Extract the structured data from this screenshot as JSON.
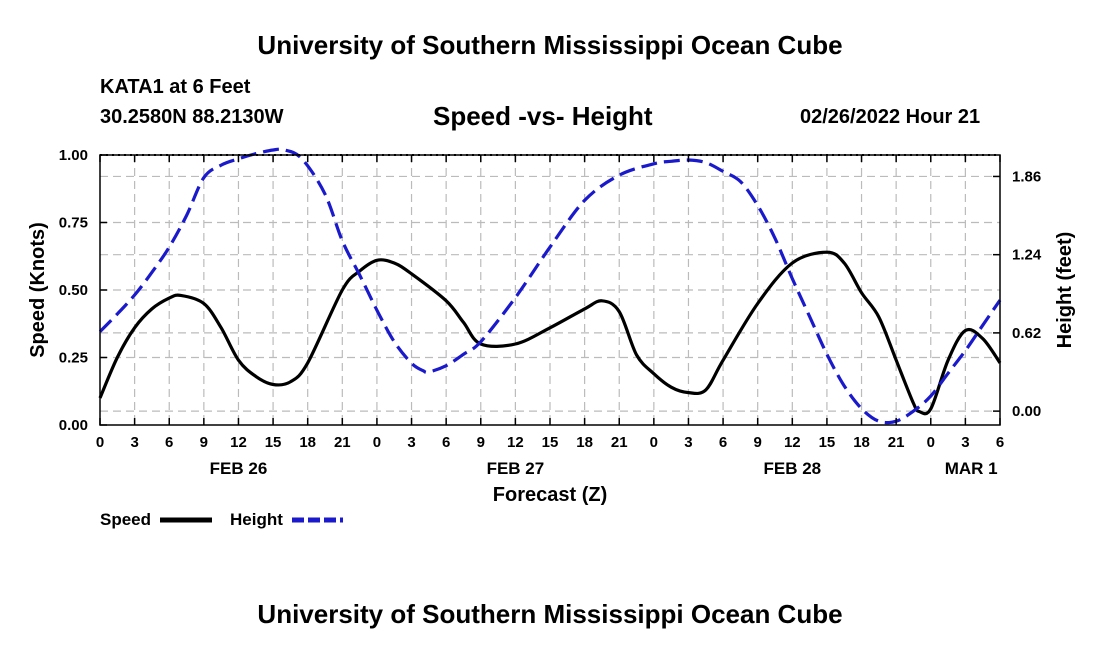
{
  "header": {
    "title": "University of Southern Mississippi Ocean Cube",
    "station": "KATA1 at 6 Feet",
    "coords": "30.2580N  88.2130W",
    "subtitle": "Speed -vs- Height",
    "datetime": "02/26/2022 Hour 21"
  },
  "footer": {
    "title": "University of Southern Mississippi Ocean Cube"
  },
  "colors": {
    "speed": "#000000",
    "height": "#1a1acc",
    "grid": "#bbbbbb"
  },
  "chart_data": {
    "type": "line",
    "title": "Speed -vs- Height",
    "xlabel": "Forecast (Z)",
    "ylabel": "Speed (Knots)",
    "y2label": "Height (feet)",
    "xlim": [
      0,
      78
    ],
    "ylim": [
      0,
      1
    ],
    "y2lim": [
      -0.11,
      2.03
    ],
    "x_ticks": [
      0,
      3,
      6,
      9,
      12,
      15,
      18,
      21,
      24,
      27,
      30,
      33,
      36,
      39,
      42,
      45,
      48,
      51,
      54,
      57,
      60,
      63,
      66,
      69,
      72,
      75,
      78
    ],
    "x_tick_labels": [
      "0",
      "3",
      "6",
      "9",
      "12",
      "15",
      "18",
      "21",
      "0",
      "3",
      "6",
      "9",
      "12",
      "15",
      "18",
      "21",
      "0",
      "3",
      "6",
      "9",
      "12",
      "15",
      "18",
      "21",
      "0",
      "3",
      "6"
    ],
    "y_ticks": [
      0,
      0.25,
      0.5,
      0.75,
      1.0
    ],
    "y_tick_labels": [
      "0.00",
      "0.25",
      "0.50",
      "0.75",
      "1.00"
    ],
    "y2_ticks": [
      0,
      0.62,
      1.24,
      1.86
    ],
    "y2_tick_labels": [
      "0.00",
      "0.62",
      "1.24",
      "1.86"
    ],
    "day_labels": [
      {
        "x": 12,
        "label": "FEB 26"
      },
      {
        "x": 36,
        "label": "FEB 27"
      },
      {
        "x": 60,
        "label": "FEB 28"
      },
      {
        "x": 75.5,
        "label": "MAR 1"
      }
    ],
    "grid": true,
    "legend_position": "bottom-left",
    "series": [
      {
        "name": "Speed",
        "axis": "left",
        "style": "solid",
        "color": "#000000",
        "x": [
          0,
          1.5,
          3,
          4.5,
          6,
          7,
          9,
          10.5,
          12,
          13.5,
          15,
          16.5,
          18,
          21,
          22.5,
          24,
          25.5,
          27,
          30,
          31.5,
          33,
          36,
          39,
          42,
          43.5,
          45,
          46.5,
          48,
          49.5,
          51,
          52.5,
          54,
          57,
          60,
          63,
          64.5,
          66,
          67.5,
          69,
          70.5,
          71,
          72,
          73.5,
          75,
          76.5,
          78
        ],
        "y": [
          0.1,
          0.25,
          0.36,
          0.43,
          0.47,
          0.48,
          0.45,
          0.36,
          0.24,
          0.18,
          0.15,
          0.16,
          0.23,
          0.5,
          0.57,
          0.61,
          0.6,
          0.56,
          0.46,
          0.38,
          0.3,
          0.3,
          0.36,
          0.43,
          0.46,
          0.42,
          0.26,
          0.19,
          0.14,
          0.12,
          0.13,
          0.24,
          0.45,
          0.6,
          0.64,
          0.6,
          0.49,
          0.4,
          0.24,
          0.08,
          0.05,
          0.06,
          0.24,
          0.35,
          0.32,
          0.23
        ]
      },
      {
        "name": "Height",
        "axis": "right",
        "style": "dashed",
        "color": "#1a1acc",
        "x": [
          0,
          1.5,
          3,
          4.5,
          6,
          7.5,
          9,
          10.5,
          12,
          13.5,
          15,
          16,
          17.5,
          19.5,
          21,
          22.5,
          24,
          25.5,
          27,
          28,
          28.5,
          30,
          31.5,
          33,
          36,
          39,
          42,
          45,
          48,
          49.5,
          51,
          52.5,
          54,
          55.5,
          57,
          58.5,
          60,
          61.5,
          63,
          64.5,
          66,
          67.5,
          69,
          70.5,
          72,
          73.5,
          75,
          76.5,
          78
        ],
        "y": [
          0.63,
          0.77,
          0.92,
          1.1,
          1.3,
          1.55,
          1.85,
          1.95,
          2.0,
          2.04,
          2.07,
          2.07,
          2.0,
          1.72,
          1.35,
          1.08,
          0.8,
          0.55,
          0.38,
          0.32,
          0.31,
          0.36,
          0.45,
          0.55,
          0.9,
          1.3,
          1.67,
          1.87,
          1.96,
          1.98,
          1.99,
          1.97,
          1.9,
          1.82,
          1.63,
          1.37,
          1.05,
          0.75,
          0.45,
          0.2,
          0.02,
          -0.08,
          -0.08,
          0.0,
          0.12,
          0.3,
          0.48,
          0.68,
          0.88
        ]
      }
    ]
  }
}
